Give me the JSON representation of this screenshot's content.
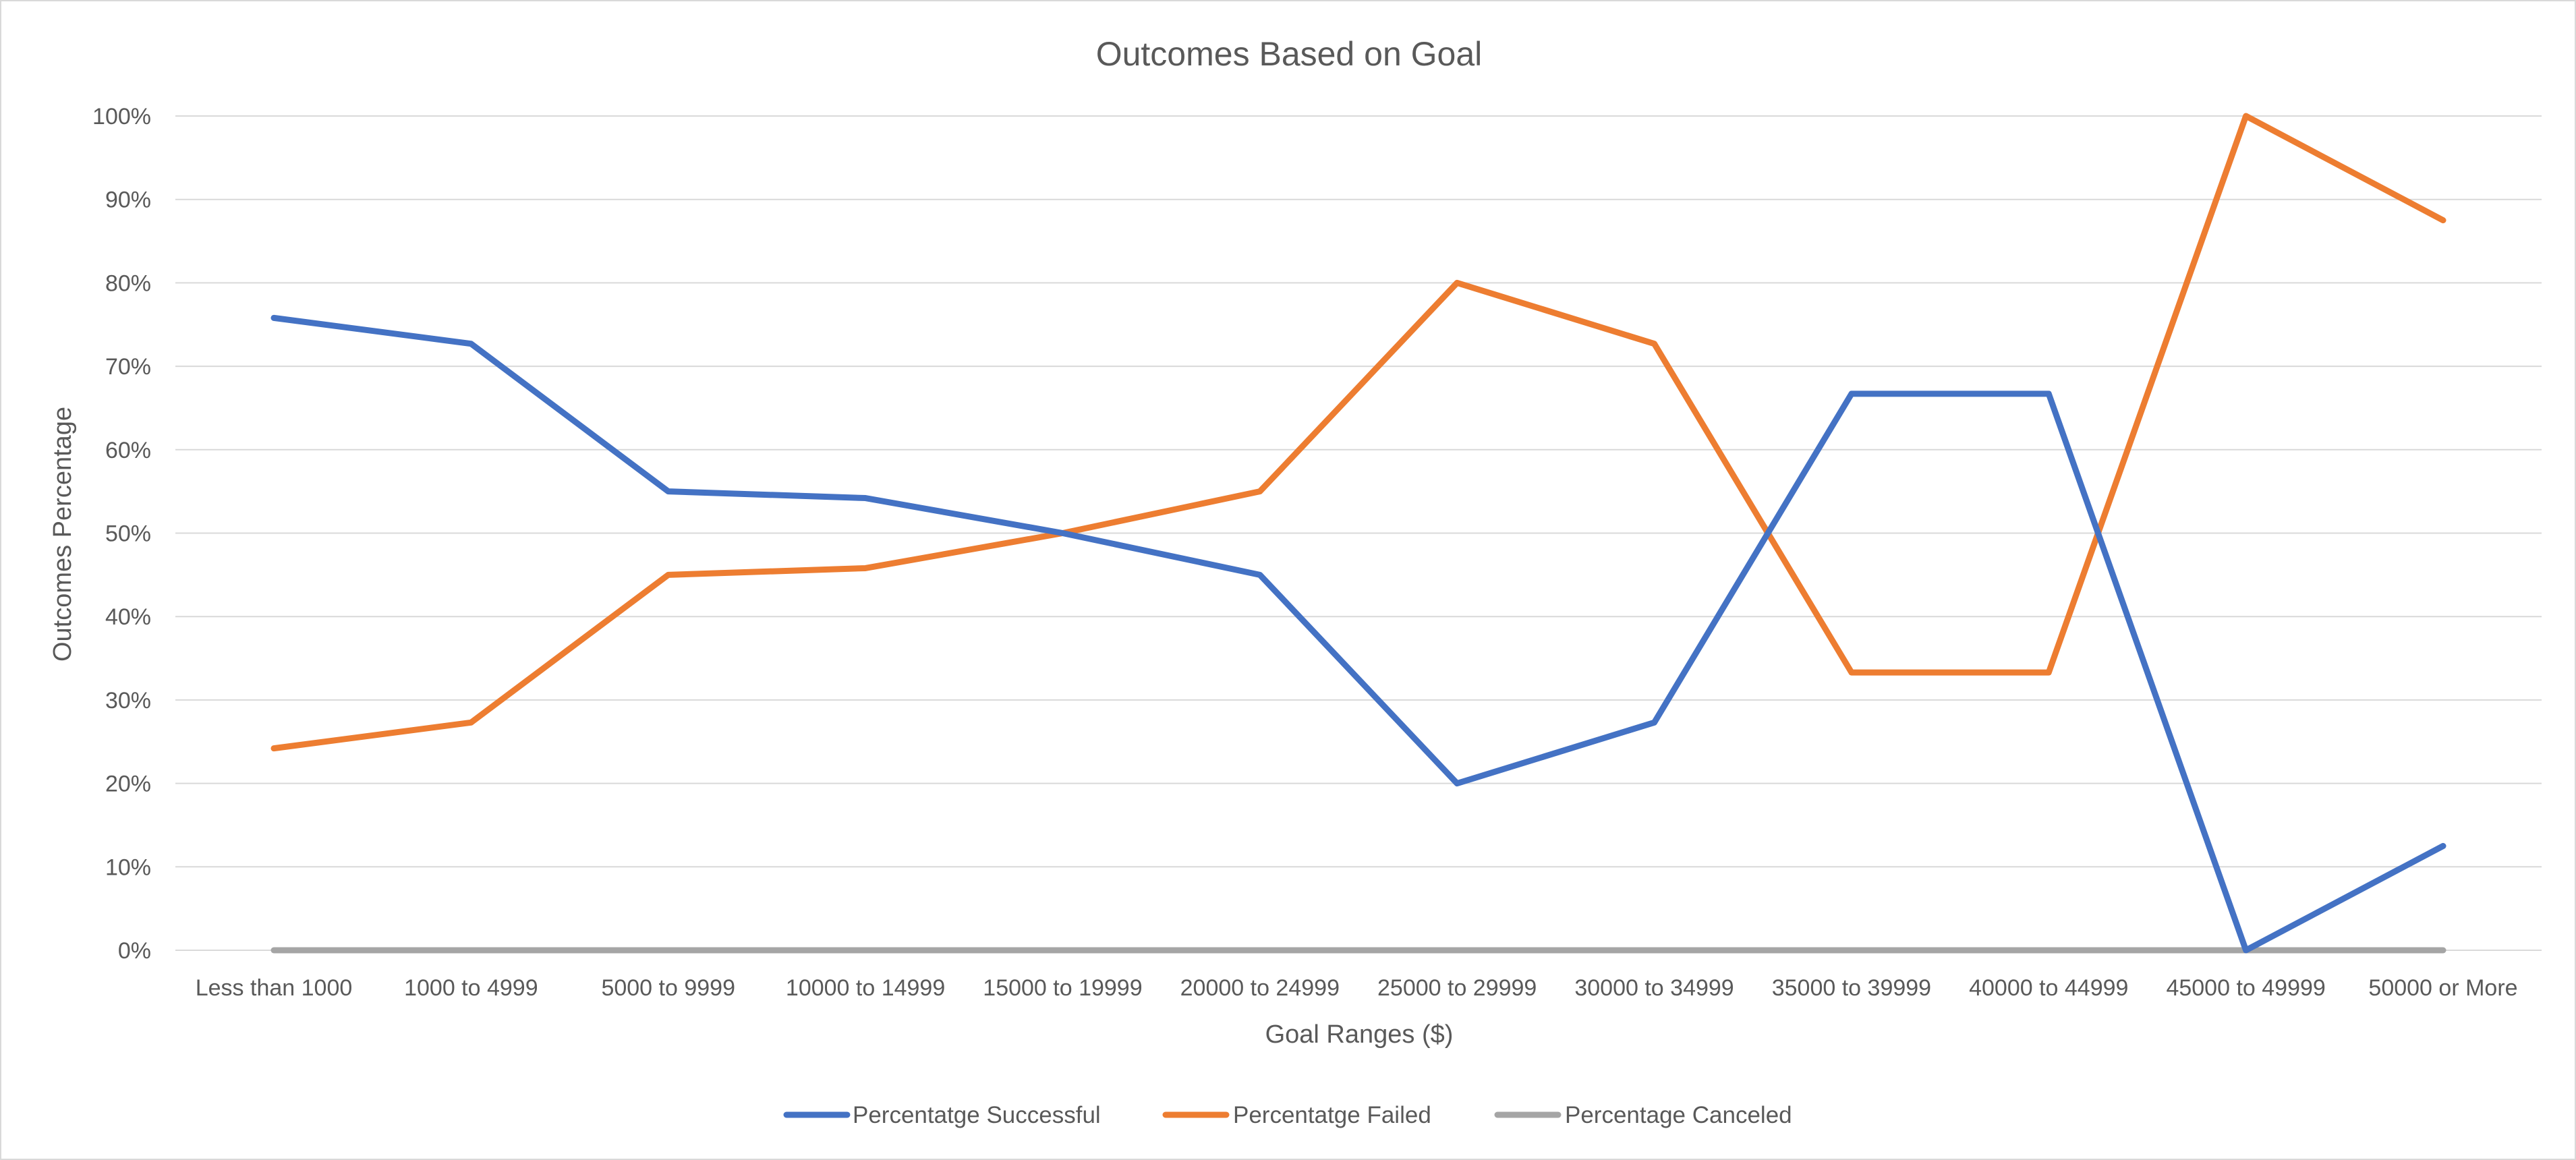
{
  "chart_data": {
    "type": "line",
    "title": "Outcomes Based on Goal",
    "xlabel": "Goal Ranges ($)",
    "ylabel": "Outcomes Percentage",
    "categories": [
      "Less than 1000",
      "1000 to 4999",
      "5000 to 9999",
      "10000 to 14999",
      "15000 to 19999",
      "20000 to 24999",
      "25000 to 29999",
      "30000 to 34999",
      "35000 to 39999",
      "40000 to 44999",
      "45000 to 49999",
      "50000 or More"
    ],
    "yticks": [
      "0%",
      "10%",
      "20%",
      "30%",
      "40%",
      "50%",
      "60%",
      "70%",
      "80%",
      "90%",
      "100%"
    ],
    "ylim": [
      0,
      100
    ],
    "grid": true,
    "legend_position": "bottom",
    "series": [
      {
        "name": "Percentatge Successful",
        "color": "#4472C4",
        "values": [
          75.8,
          72.7,
          55.0,
          54.2,
          50.0,
          45.0,
          20.0,
          27.3,
          66.7,
          66.7,
          0.0,
          12.5
        ]
      },
      {
        "name": "Percentatge Failed",
        "color": "#ED7D31",
        "values": [
          24.2,
          27.3,
          45.0,
          45.8,
          50.0,
          55.0,
          80.0,
          72.7,
          33.3,
          33.3,
          100.0,
          87.5
        ]
      },
      {
        "name": "Percentage Canceled",
        "color": "#A5A5A5",
        "values": [
          0,
          0,
          0,
          0,
          0,
          0,
          0,
          0,
          0,
          0,
          0,
          0
        ]
      }
    ]
  }
}
